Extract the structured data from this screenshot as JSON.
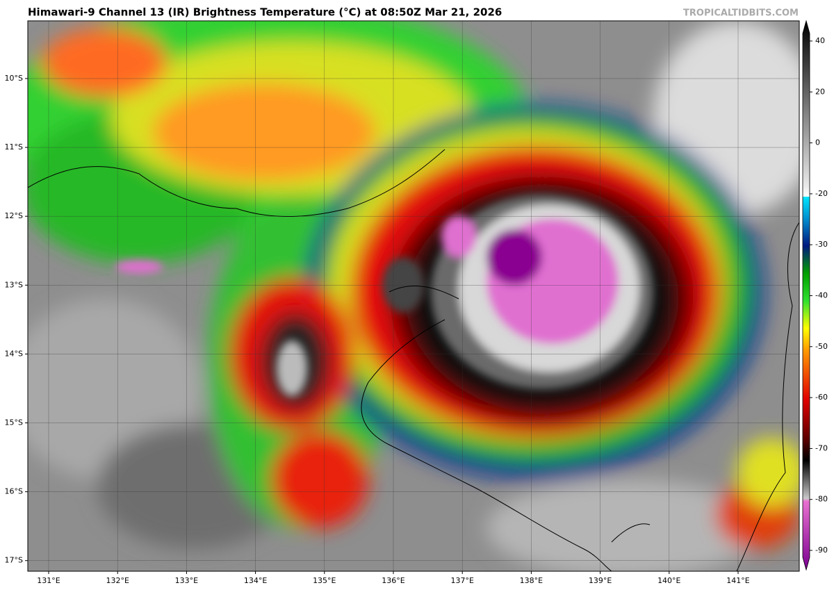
{
  "header": {
    "title": "Himawari-9 Channel 13 (IR) Brightness Temperature (°C) at 08:50Z Mar 21, 2026",
    "watermark": "TROPICALTIDBITS.COM"
  },
  "map": {
    "lat_labels": [
      "10°S",
      "11°S",
      "12°S",
      "13°S",
      "14°S",
      "15°S",
      "16°S",
      "17°S"
    ],
    "lon_labels": [
      "131°E",
      "132°E",
      "133°E",
      "134°E",
      "135°E",
      "136°E",
      "137°E",
      "138°E",
      "139°E",
      "140°E",
      "141°E"
    ]
  },
  "colorbar": {
    "ticks": [
      40,
      20,
      0,
      -20,
      -30,
      -40,
      -50,
      -60,
      -70,
      -80,
      -90
    ]
  }
}
